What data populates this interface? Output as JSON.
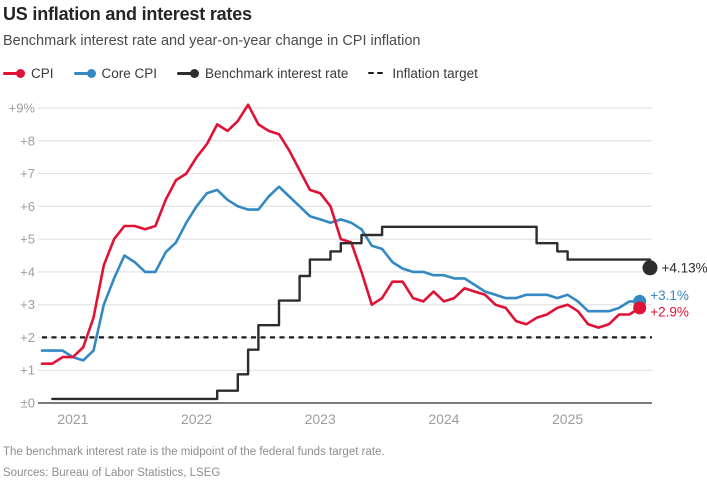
{
  "header": {
    "title": "US inflation and interest rates",
    "subtitle": "Benchmark interest rate and year-on-year change in CPI inflation"
  },
  "legend": [
    {
      "label": "CPI",
      "color": "#e01236",
      "marker": "line-dot"
    },
    {
      "label": "Core CPI",
      "color": "#3489c4",
      "marker": "line-dot"
    },
    {
      "label": "Benchmark interest rate",
      "color": "#2d2d2d",
      "marker": "line-dot"
    },
    {
      "label": "Inflation target",
      "color": "#1c1c1c",
      "marker": "dashes"
    }
  ],
  "footer": {
    "note": "The benchmark interest rate is the midpoint of the federal funds target rate.",
    "sources": "Sources: Bureau of Labor Statistics, LSEG"
  },
  "chart_data": {
    "type": "line",
    "x_unit": "month",
    "x_range": [
      "2020-10",
      "2025-09"
    ],
    "months_total": 60,
    "ylim": [
      0,
      9
    ],
    "grid": true,
    "style": {
      "grid_color": "#dedede",
      "axis_color": "#7a7a7a",
      "tick_label_color": "#9d9d9d",
      "target_color": "#1c1c1c"
    },
    "y_ticks": [
      {
        "value": 9,
        "label": "+9%"
      },
      {
        "value": 8,
        "label": "+8"
      },
      {
        "value": 7,
        "label": "+7"
      },
      {
        "value": 6,
        "label": "+6"
      },
      {
        "value": 5,
        "label": "+5"
      },
      {
        "value": 4,
        "label": "+4"
      },
      {
        "value": 3,
        "label": "+3"
      },
      {
        "value": 2,
        "label": "+2"
      },
      {
        "value": 1,
        "label": "+1"
      },
      {
        "value": 0,
        "label": "±0"
      }
    ],
    "x_ticks": [
      {
        "label": "2021",
        "month_index": 3
      },
      {
        "label": "2022",
        "month_index": 15
      },
      {
        "label": "2023",
        "month_index": 27
      },
      {
        "label": "2024",
        "month_index": 39
      },
      {
        "label": "2025",
        "month_index": 51
      }
    ],
    "target_line": {
      "value": 2,
      "label": "Inflation target"
    },
    "series": [
      {
        "name": "CPI",
        "type": "line",
        "color": "#e01236",
        "width": 2.6,
        "dot_radius": 6.5,
        "end_label": "+2.9%",
        "label_dy": 4,
        "x_offset": 0,
        "z": 2,
        "values": [
          1.2,
          1.2,
          1.4,
          1.4,
          1.7,
          2.6,
          4.2,
          5.0,
          5.4,
          5.4,
          5.3,
          5.4,
          6.2,
          6.8,
          7.0,
          7.5,
          7.9,
          8.5,
          8.3,
          8.6,
          9.1,
          8.5,
          8.3,
          8.2,
          7.7,
          7.1,
          6.5,
          6.4,
          6.0,
          5.0,
          4.9,
          4.0,
          3.0,
          3.2,
          3.7,
          3.7,
          3.2,
          3.1,
          3.4,
          3.1,
          3.2,
          3.5,
          3.4,
          3.3,
          3.0,
          2.9,
          2.5,
          2.4,
          2.6,
          2.7,
          2.9,
          3.0,
          2.8,
          2.4,
          2.3,
          2.4,
          2.7,
          2.7,
          2.9
        ]
      },
      {
        "name": "Core CPI",
        "type": "line",
        "color": "#3489c4",
        "width": 2.6,
        "dot_radius": 6.5,
        "end_label": "+3.1%",
        "label_dy": -6,
        "x_offset": 0,
        "z": 1,
        "values": [
          1.6,
          1.6,
          1.6,
          1.4,
          1.3,
          1.6,
          3.0,
          3.8,
          4.5,
          4.3,
          4.0,
          4.0,
          4.6,
          4.9,
          5.5,
          6.0,
          6.4,
          6.5,
          6.2,
          6.0,
          5.9,
          5.9,
          6.3,
          6.6,
          6.3,
          6.0,
          5.7,
          5.6,
          5.5,
          5.6,
          5.5,
          5.3,
          4.8,
          4.7,
          4.3,
          4.1,
          4.0,
          4.0,
          3.9,
          3.9,
          3.8,
          3.8,
          3.6,
          3.4,
          3.3,
          3.2,
          3.2,
          3.3,
          3.3,
          3.3,
          3.2,
          3.3,
          3.1,
          2.8,
          2.8,
          2.8,
          2.9,
          3.1,
          3.1
        ]
      },
      {
        "name": "Benchmark interest rate",
        "type": "step",
        "color": "#2d2d2d",
        "width": 2.4,
        "dot_radius": 7.5,
        "end_label": "+4.13%",
        "label_dy": 0,
        "x_offset": 1,
        "z": 3,
        "values": [
          0.125,
          0.125,
          0.125,
          0.125,
          0.125,
          0.125,
          0.125,
          0.125,
          0.125,
          0.125,
          0.125,
          0.125,
          0.125,
          0.125,
          0.125,
          0.125,
          0.375,
          0.375,
          0.875,
          1.625,
          2.375,
          2.375,
          3.125,
          3.125,
          3.875,
          4.375,
          4.375,
          4.625,
          4.875,
          4.875,
          5.125,
          5.125,
          5.375,
          5.375,
          5.375,
          5.375,
          5.375,
          5.375,
          5.375,
          5.375,
          5.375,
          5.375,
          5.375,
          5.375,
          5.375,
          5.375,
          5.375,
          4.875,
          4.875,
          4.625,
          4.375,
          4.375,
          4.375,
          4.375,
          4.375,
          4.375,
          4.375,
          4.375,
          4.125
        ]
      }
    ]
  }
}
